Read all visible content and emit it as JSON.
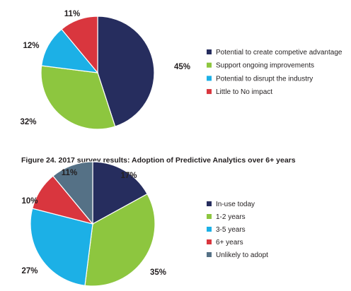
{
  "chart_data": [
    {
      "type": "pie",
      "title": "",
      "slices": [
        {
          "label": "Potential to create competive advantage",
          "value": 45,
          "value_label": "45%",
          "color": "#262d5e"
        },
        {
          "label": "Support ongoing improvements",
          "value": 32,
          "value_label": "32%",
          "color": "#8dc63f"
        },
        {
          "label": "Potential to disrupt the industry",
          "value": 12,
          "value_label": "12%",
          "color": "#1cb0e6"
        },
        {
          "label": "Little to No impact",
          "value": 11,
          "value_label": "11%",
          "color": "#d9363e"
        }
      ],
      "legend_position": "right"
    },
    {
      "type": "pie",
      "title": "Figure 24. 2017 survey results: Adoption of Predictive Analytics over 6+ years",
      "slices": [
        {
          "label": "In-use today",
          "value": 17,
          "value_label": "17%",
          "color": "#262d5e"
        },
        {
          "label": "1-2 years",
          "value": 35,
          "value_label": "35%",
          "color": "#8dc63f"
        },
        {
          "label": "3-5 years",
          "value": 27,
          "value_label": "27%",
          "color": "#1cb0e6"
        },
        {
          "label": "6+ years",
          "value": 10,
          "value_label": "10%",
          "color": "#d9363e"
        },
        {
          "label": "Unlikely to adopt",
          "value": 11,
          "value_label": "11%",
          "color": "#557186"
        }
      ],
      "legend_position": "right"
    }
  ]
}
